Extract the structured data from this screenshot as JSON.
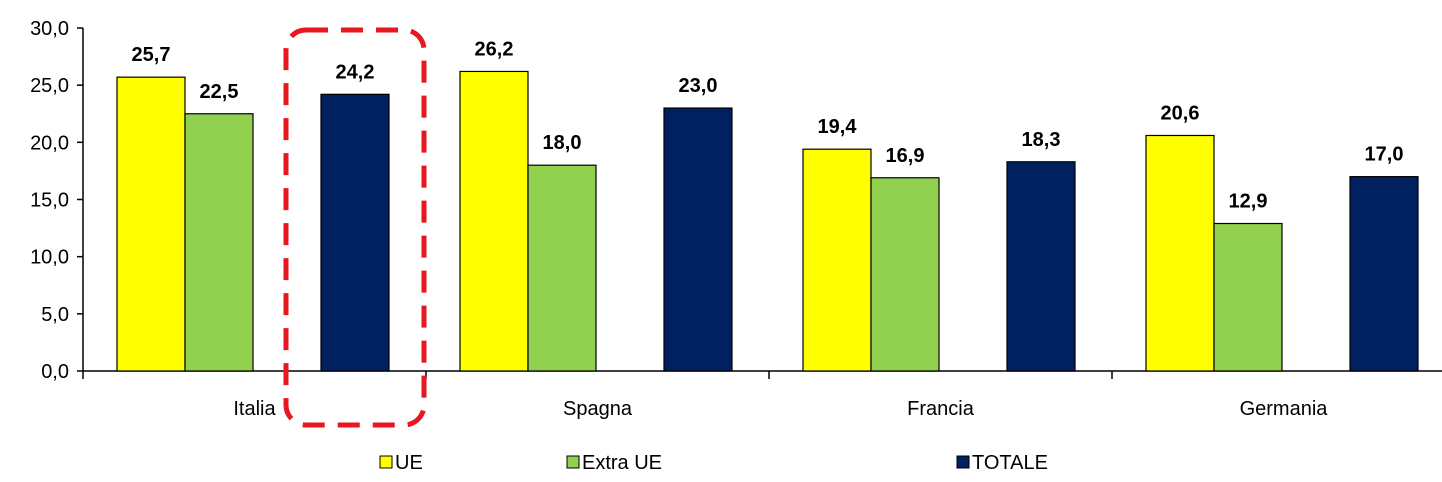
{
  "chart_data": {
    "type": "bar",
    "categories": [
      "Italia",
      "Spagna",
      "Francia",
      "Germania"
    ],
    "series": [
      {
        "name": "UE",
        "values": [
          25.7,
          26.2,
          19.4,
          20.6
        ],
        "value_labels": [
          "25,7",
          "26,2",
          "19,4",
          "20,6"
        ],
        "color": "#FFFF00"
      },
      {
        "name": "Extra UE",
        "values": [
          22.5,
          18.0,
          16.9,
          12.9
        ],
        "value_labels": [
          "22,5",
          "18,0",
          "16,9",
          "12,9"
        ],
        "color": "#92D050"
      },
      {
        "name": "TOTALE",
        "values": [
          24.2,
          23.0,
          18.3,
          17.0
        ],
        "value_labels": [
          "24,2",
          "23,0",
          "18,3",
          "17,0"
        ],
        "color": "#002060"
      }
    ],
    "ylim": [
      0,
      30
    ],
    "yticks": [
      0,
      5,
      10,
      15,
      20,
      25,
      30
    ],
    "ytick_labels": [
      "0,0",
      "5,0",
      "10,0",
      "15,0",
      "20,0",
      "25,0",
      "30,0"
    ],
    "legend_position": "bottom",
    "grid": false,
    "highlight": {
      "category": "Italia",
      "series": "TOTALE",
      "style": "red dashed rounded box",
      "color": "#E8161E"
    }
  }
}
